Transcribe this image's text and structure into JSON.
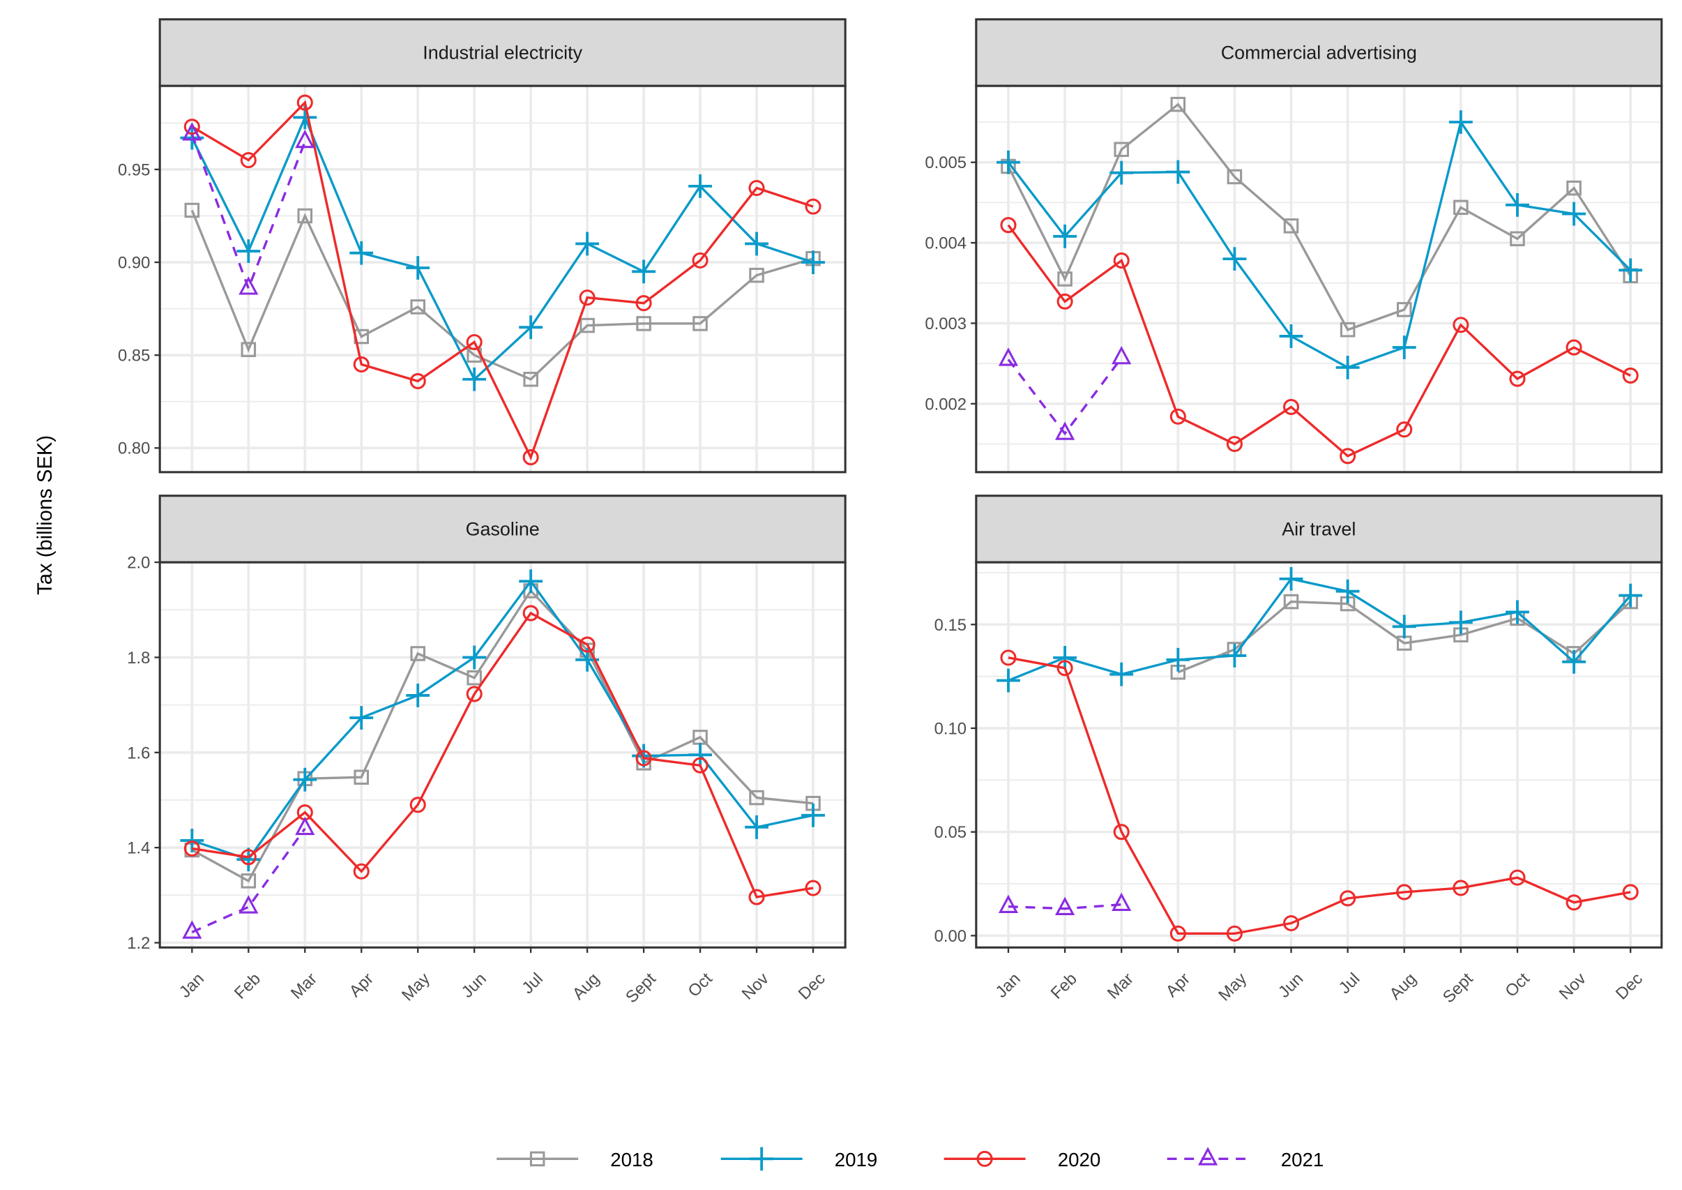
{
  "chart_data": {
    "type": "line",
    "layout": "faceted 2x2",
    "ylabel": "Tax (billions SEK)",
    "xlabel": "",
    "categories": [
      "Jan",
      "Feb",
      "Mar",
      "Apr",
      "May",
      "Jun",
      "Jul",
      "Aug",
      "Sept",
      "Oct",
      "Nov",
      "Dec"
    ],
    "grid": true,
    "legend": {
      "position": "bottom",
      "entries": [
        "2018",
        "2019",
        "2020",
        "2021"
      ]
    },
    "series_styles": [
      {
        "name": "2018",
        "color": "#999999",
        "marker": "square",
        "dash": "solid"
      },
      {
        "name": "2019",
        "color": "#0A9AC9",
        "marker": "plus",
        "dash": "solid"
      },
      {
        "name": "2020",
        "color": "#EE2A2A",
        "marker": "circle",
        "dash": "solid"
      },
      {
        "name": "2021",
        "color": "#8A2BE2",
        "marker": "triangle",
        "dash": "dashed"
      }
    ],
    "panels": [
      {
        "title": "Industrial electricity",
        "ylim": [
          0.787,
          0.995
        ],
        "yticks": [
          0.8,
          0.85,
          0.9,
          0.95
        ],
        "ytick_labels": [
          "0.80",
          "0.85",
          "0.90",
          "0.95"
        ],
        "series": [
          {
            "name": "2018",
            "values": [
              0.928,
              0.853,
              0.925,
              0.86,
              0.876,
              0.85,
              0.837,
              0.866,
              0.867,
              0.867,
              0.893,
              0.902
            ]
          },
          {
            "name": "2019",
            "values": [
              0.967,
              0.906,
              0.978,
              0.905,
              0.897,
              0.837,
              0.865,
              0.91,
              0.895,
              0.941,
              0.91,
              0.9
            ]
          },
          {
            "name": "2020",
            "values": [
              0.973,
              0.955,
              0.986,
              0.845,
              0.836,
              0.857,
              0.795,
              0.881,
              0.878,
              0.901,
              0.94,
              0.93
            ]
          },
          {
            "name": "2021",
            "values": [
              0.969,
              0.886,
              0.965,
              null,
              null,
              null,
              null,
              null,
              null,
              null,
              null,
              null
            ]
          }
        ]
      },
      {
        "title": "Commercial advertising",
        "ylim": [
          0.00115,
          0.00595
        ],
        "yticks": [
          0.002,
          0.003,
          0.004,
          0.005
        ],
        "ytick_labels": [
          "0.002",
          "0.003",
          "0.004",
          "0.005"
        ],
        "series": [
          {
            "name": "2018",
            "values": [
              0.00495,
              0.00355,
              0.00516,
              0.00572,
              0.00482,
              0.00421,
              0.00292,
              0.00317,
              0.00444,
              0.00405,
              0.00468,
              0.00359
            ]
          },
          {
            "name": "2019",
            "values": [
              0.005,
              0.00408,
              0.00487,
              0.00488,
              0.0038,
              0.00284,
              0.00245,
              0.0027,
              0.0055,
              0.00447,
              0.00436,
              0.00366
            ]
          },
          {
            "name": "2020",
            "values": [
              0.00422,
              0.00327,
              0.00378,
              0.00184,
              0.0015,
              0.00196,
              0.00135,
              0.00168,
              0.00298,
              0.00231,
              0.0027,
              0.00235
            ]
          },
          {
            "name": "2021",
            "values": [
              0.00255,
              0.00163,
              0.00257,
              null,
              null,
              null,
              null,
              null,
              null,
              null,
              null,
              null
            ]
          }
        ]
      },
      {
        "title": "Gasoline",
        "ylim": [
          1.19,
          2.0
        ],
        "yticks": [
          1.2,
          1.4,
          1.6,
          1.8,
          2.0
        ],
        "ytick_labels": [
          "1.2",
          "1.4",
          "1.6",
          "1.8",
          "2.0"
        ],
        "series": [
          {
            "name": "2018",
            "values": [
              1.395,
              1.33,
              1.545,
              1.548,
              1.808,
              1.757,
              1.94,
              1.815,
              1.578,
              1.632,
              1.505,
              1.493
            ]
          },
          {
            "name": "2019",
            "values": [
              1.415,
              1.375,
              1.543,
              1.673,
              1.72,
              1.8,
              1.96,
              1.795,
              1.593,
              1.595,
              1.443,
              1.468
            ]
          },
          {
            "name": "2020",
            "values": [
              1.398,
              1.38,
              1.474,
              1.35,
              1.49,
              1.723,
              1.893,
              1.827,
              1.588,
              1.573,
              1.296,
              1.315
            ]
          },
          {
            "name": "2021",
            "values": [
              1.222,
              1.275,
              1.44,
              null,
              null,
              null,
              null,
              null,
              null,
              null,
              null,
              null
            ]
          }
        ]
      },
      {
        "title": "Air travel",
        "ylim": [
          -0.0057,
          0.18
        ],
        "yticks": [
          0.0,
          0.05,
          0.1,
          0.15
        ],
        "ytick_labels": [
          "0.00",
          "0.05",
          "0.10",
          "0.15"
        ],
        "series": [
          {
            "name": "2018",
            "values": [
              null,
              null,
              null,
              0.127,
              0.138,
              0.161,
              0.16,
              0.141,
              0.145,
              0.153,
              0.136,
              0.161
            ]
          },
          {
            "name": "2019",
            "values": [
              0.123,
              0.134,
              0.126,
              0.133,
              0.135,
              0.172,
              0.166,
              0.149,
              0.151,
              0.156,
              0.132,
              0.164
            ]
          },
          {
            "name": "2020",
            "values": [
              0.134,
              0.129,
              0.05,
              0.001,
              0.001,
              0.006,
              0.018,
              0.021,
              0.023,
              0.028,
              0.016,
              0.021
            ]
          },
          {
            "name": "2021",
            "values": [
              0.014,
              0.013,
              0.015,
              null,
              null,
              null,
              null,
              null,
              null,
              null,
              null,
              null
            ]
          }
        ]
      }
    ]
  }
}
